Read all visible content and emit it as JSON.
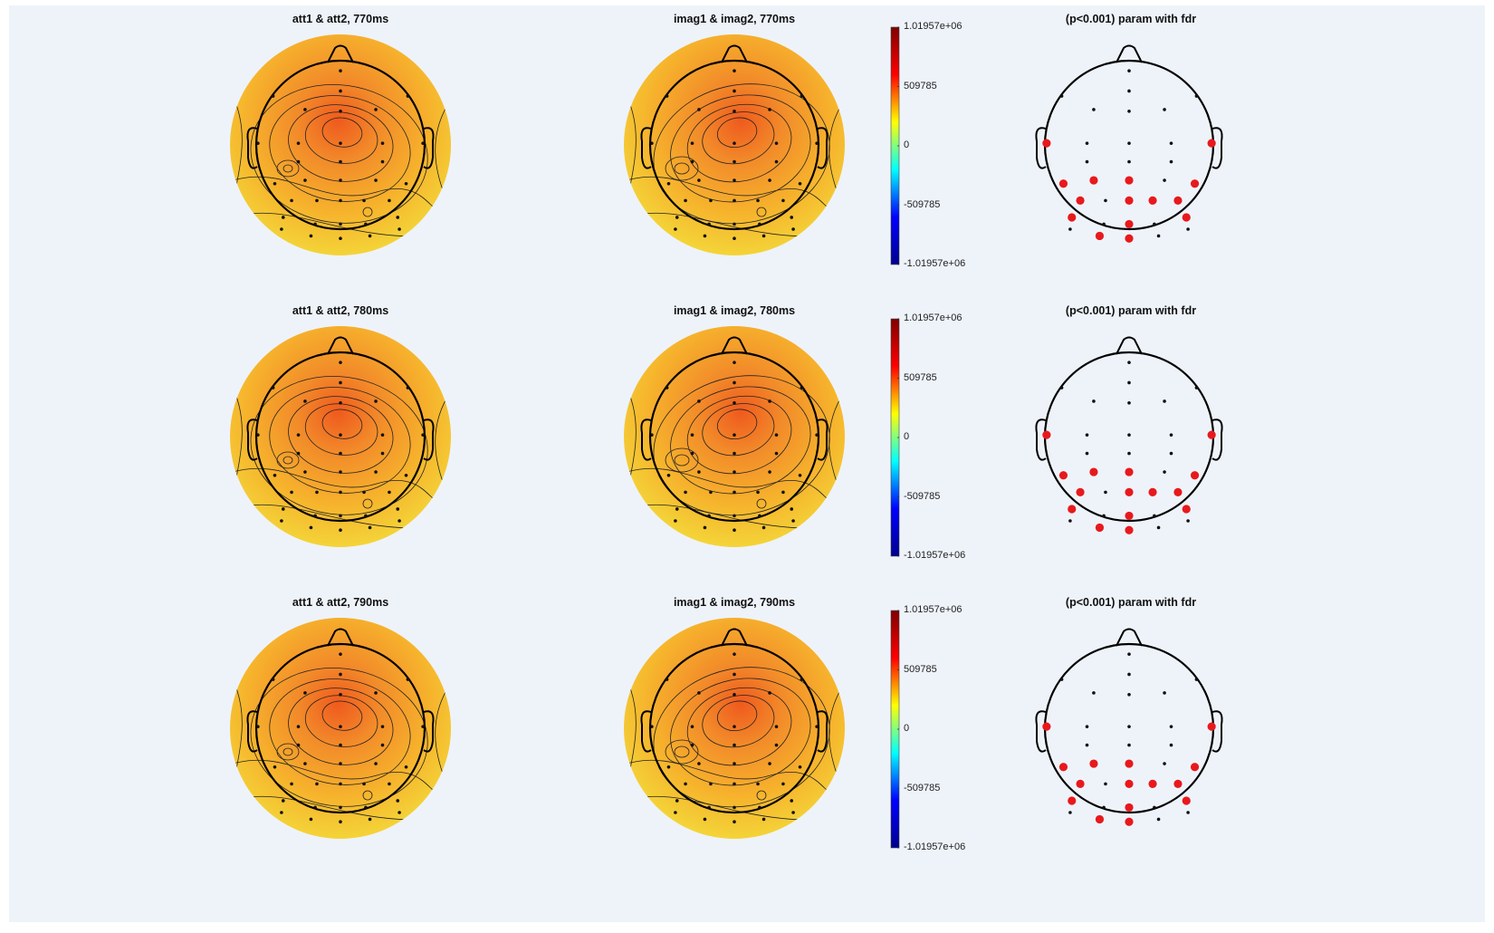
{
  "figure": {
    "rows": [
      {
        "time_label": "770ms",
        "titles": {
          "att": "att1 & att2, 770ms",
          "imag": "imag1 & imag2, 770ms",
          "stat": "(p<0.001) param with fdr"
        }
      },
      {
        "time_label": "780ms",
        "titles": {
          "att": "att1 & att2, 780ms",
          "imag": "imag1 & imag2, 780ms",
          "stat": "(p<0.001) param with fdr"
        }
      },
      {
        "time_label": "790ms",
        "titles": {
          "att": "att1 & att2, 790ms",
          "imag": "imag1 & imag2, 790ms",
          "stat": "(p<0.001) param with fdr"
        }
      }
    ],
    "colorbar": {
      "ticks": [
        "1.01957e+06",
        "509785",
        "0",
        "-509785",
        "-1.01957e+06"
      ],
      "values": [
        1019570,
        509785,
        0,
        -509785,
        -1019570
      ],
      "colormap": [
        "#7f0000",
        "#ff0000",
        "#ffff00",
        "#00ffff",
        "#0000ff",
        "#00008f"
      ]
    },
    "colors": {
      "background": "#eef3fa",
      "head_outline": "#000000",
      "significant_marker": "#e8191c",
      "map_peak": "#ef5a1e",
      "map_mid": "#f6b22c",
      "map_low": "#f3df3c"
    },
    "significant_channel_count": 15
  }
}
